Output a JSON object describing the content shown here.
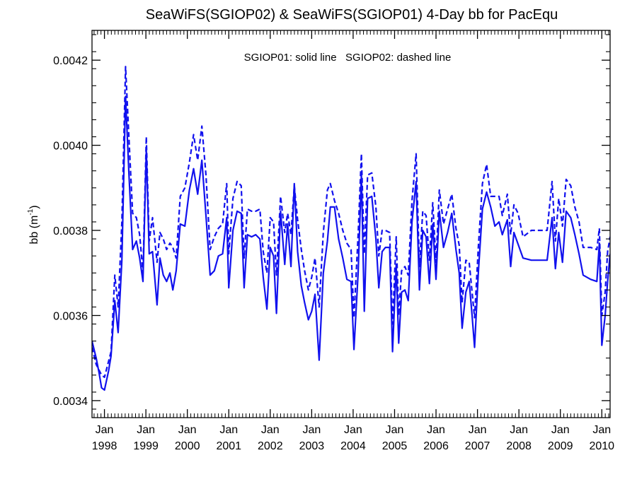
{
  "chart_data": {
    "type": "line",
    "title": "SeaWiFS(SGIOP02) & SeaWiFS(SGIOP01) 4-Day bb for PacEqu",
    "annotation": "SGIOP01: solid line   SGIOP02: dashed line",
    "ylabel": {
      "prefix": "bb (m",
      "superscript": "-1",
      "suffix": ")"
    },
    "xlabel": "",
    "ylim": [
      0.00336,
      0.00427
    ],
    "xlim": [
      1997.7,
      2010.2
    ],
    "y_ticks": [
      "0.0034",
      "0.0036",
      "0.0038",
      "0.0040",
      "0.0042"
    ],
    "x_ticks": [
      {
        "month": "Jan",
        "year": "1998"
      },
      {
        "month": "Jan",
        "year": "1999"
      },
      {
        "month": "Jan",
        "year": "2000"
      },
      {
        "month": "Jan",
        "year": "2001"
      },
      {
        "month": "Jan",
        "year": "2002"
      },
      {
        "month": "Jan",
        "year": "2003"
      },
      {
        "month": "Jan",
        "year": "2004"
      },
      {
        "month": "Jan",
        "year": "2005"
      },
      {
        "month": "Jan",
        "year": "2006"
      },
      {
        "month": "Jan",
        "year": "2007"
      },
      {
        "month": "Jan",
        "year": "2008"
      },
      {
        "month": "Jan",
        "year": "2009"
      },
      {
        "month": "Jan",
        "year": "2010"
      }
    ],
    "grid": false,
    "colors": {
      "series": "#1111ee",
      "axes": "#000000",
      "background": "#ffffff"
    },
    "series": [
      {
        "line_style": "solid",
        "points": [
          [
            1997.7,
            0.00354
          ],
          [
            1997.8,
            0.0035
          ],
          [
            1997.87,
            0.003465
          ],
          [
            1997.93,
            0.00343
          ],
          [
            1998.0,
            0.003425
          ],
          [
            1998.1,
            0.00347
          ],
          [
            1998.16,
            0.003505
          ],
          [
            1998.25,
            0.003635
          ],
          [
            1998.33,
            0.00356
          ],
          [
            1998.42,
            0.00373
          ],
          [
            1998.51,
            0.004115
          ],
          [
            1998.59,
            0.003935
          ],
          [
            1998.68,
            0.003755
          ],
          [
            1998.77,
            0.003775
          ],
          [
            1998.85,
            0.003735
          ],
          [
            1998.93,
            0.00368
          ],
          [
            1999.01,
            0.00399
          ],
          [
            1999.08,
            0.003745
          ],
          [
            1999.16,
            0.00375
          ],
          [
            1999.27,
            0.003625
          ],
          [
            1999.34,
            0.003735
          ],
          [
            1999.42,
            0.003695
          ],
          [
            1999.5,
            0.00368
          ],
          [
            1999.58,
            0.0037
          ],
          [
            1999.65,
            0.00366
          ],
          [
            1999.73,
            0.003705
          ],
          [
            1999.83,
            0.003815
          ],
          [
            1999.94,
            0.00381
          ],
          [
            2000.05,
            0.003895
          ],
          [
            2000.15,
            0.003945
          ],
          [
            2000.25,
            0.003885
          ],
          [
            2000.35,
            0.003965
          ],
          [
            2000.45,
            0.003835
          ],
          [
            2000.55,
            0.003695
          ],
          [
            2000.65,
            0.003705
          ],
          [
            2000.75,
            0.00374
          ],
          [
            2000.85,
            0.003745
          ],
          [
            2000.95,
            0.00383
          ],
          [
            2001.0,
            0.003665
          ],
          [
            2001.1,
            0.0038
          ],
          [
            2001.2,
            0.003845
          ],
          [
            2001.3,
            0.00384
          ],
          [
            2001.37,
            0.003665
          ],
          [
            2001.45,
            0.00379
          ],
          [
            2001.55,
            0.003785
          ],
          [
            2001.65,
            0.00379
          ],
          [
            2001.75,
            0.00378
          ],
          [
            2001.83,
            0.00369
          ],
          [
            2001.92,
            0.003615
          ],
          [
            2002.0,
            0.00376
          ],
          [
            2002.08,
            0.00374
          ],
          [
            2002.15,
            0.003605
          ],
          [
            2002.25,
            0.003845
          ],
          [
            2002.35,
            0.00372
          ],
          [
            2002.42,
            0.003815
          ],
          [
            2002.5,
            0.003715
          ],
          [
            2002.58,
            0.00391
          ],
          [
            2002.66,
            0.00375
          ],
          [
            2002.75,
            0.00367
          ],
          [
            2002.83,
            0.00363
          ],
          [
            2002.92,
            0.00359
          ],
          [
            2003.0,
            0.00361
          ],
          [
            2003.08,
            0.00365
          ],
          [
            2003.18,
            0.003495
          ],
          [
            2003.28,
            0.0037
          ],
          [
            2003.38,
            0.003775
          ],
          [
            2003.45,
            0.003855
          ],
          [
            2003.55,
            0.003855
          ],
          [
            2003.65,
            0.00378
          ],
          [
            2003.75,
            0.003735
          ],
          [
            2003.85,
            0.003685
          ],
          [
            2003.95,
            0.00368
          ],
          [
            2004.02,
            0.00352
          ],
          [
            2004.12,
            0.0037
          ],
          [
            2004.2,
            0.00393
          ],
          [
            2004.27,
            0.00361
          ],
          [
            2004.35,
            0.003875
          ],
          [
            2004.45,
            0.00388
          ],
          [
            2004.55,
            0.00378
          ],
          [
            2004.62,
            0.003665
          ],
          [
            2004.7,
            0.00375
          ],
          [
            2004.78,
            0.00376
          ],
          [
            2004.88,
            0.00376
          ],
          [
            2004.95,
            0.003515
          ],
          [
            2005.04,
            0.00372
          ],
          [
            2005.1,
            0.003535
          ],
          [
            2005.17,
            0.003655
          ],
          [
            2005.25,
            0.00366
          ],
          [
            2005.33,
            0.003635
          ],
          [
            2005.42,
            0.00382
          ],
          [
            2005.52,
            0.003915
          ],
          [
            2005.6,
            0.00366
          ],
          [
            2005.68,
            0.0038
          ],
          [
            2005.76,
            0.003785
          ],
          [
            2005.84,
            0.003675
          ],
          [
            2005.92,
            0.003815
          ],
          [
            2006.0,
            0.003685
          ],
          [
            2006.08,
            0.003845
          ],
          [
            2006.18,
            0.00376
          ],
          [
            2006.28,
            0.003795
          ],
          [
            2006.38,
            0.00384
          ],
          [
            2006.48,
            0.003755
          ],
          [
            2006.56,
            0.0037
          ],
          [
            2006.63,
            0.00357
          ],
          [
            2006.72,
            0.003655
          ],
          [
            2006.8,
            0.00368
          ],
          [
            2006.87,
            0.0036
          ],
          [
            2006.93,
            0.003525
          ],
          [
            2007.02,
            0.0037
          ],
          [
            2007.12,
            0.00385
          ],
          [
            2007.22,
            0.00389
          ],
          [
            2007.32,
            0.003855
          ],
          [
            2007.42,
            0.00381
          ],
          [
            2007.52,
            0.00382
          ],
          [
            2007.6,
            0.00379
          ],
          [
            2007.72,
            0.003825
          ],
          [
            2007.8,
            0.003715
          ],
          [
            2007.88,
            0.003795
          ],
          [
            2008.1,
            0.003735
          ],
          [
            2008.3,
            0.00373
          ],
          [
            2008.6,
            0.00373
          ],
          [
            2008.68,
            0.00373
          ],
          [
            2008.8,
            0.00383
          ],
          [
            2008.88,
            0.00371
          ],
          [
            2008.96,
            0.003795
          ],
          [
            2009.05,
            0.003725
          ],
          [
            2009.14,
            0.003845
          ],
          [
            2009.25,
            0.00383
          ],
          [
            2009.35,
            0.00379
          ],
          [
            2009.45,
            0.003745
          ],
          [
            2009.55,
            0.003695
          ],
          [
            2009.73,
            0.003685
          ],
          [
            2009.88,
            0.00368
          ],
          [
            2009.94,
            0.00377
          ],
          [
            2010.0,
            0.00353
          ],
          [
            2010.08,
            0.0036
          ],
          [
            2010.14,
            0.00368
          ],
          [
            2010.2,
            0.003745
          ]
        ]
      },
      {
        "line_style": "dashed",
        "points": [
          [
            1997.7,
            0.003525
          ],
          [
            1997.8,
            0.003485
          ],
          [
            1997.93,
            0.00346
          ],
          [
            1998.0,
            0.003455
          ],
          [
            1998.16,
            0.003515
          ],
          [
            1998.25,
            0.003695
          ],
          [
            1998.33,
            0.00362
          ],
          [
            1998.42,
            0.00382
          ],
          [
            1998.51,
            0.004185
          ],
          [
            1998.59,
            0.00402
          ],
          [
            1998.68,
            0.00384
          ],
          [
            1998.77,
            0.00383
          ],
          [
            1998.85,
            0.00379
          ],
          [
            1998.93,
            0.0037
          ],
          [
            1999.01,
            0.00402
          ],
          [
            1999.08,
            0.003775
          ],
          [
            1999.16,
            0.00383
          ],
          [
            1999.27,
            0.003725
          ],
          [
            1999.34,
            0.003795
          ],
          [
            1999.42,
            0.00378
          ],
          [
            1999.5,
            0.003755
          ],
          [
            1999.58,
            0.00377
          ],
          [
            1999.65,
            0.00376
          ],
          [
            1999.73,
            0.003735
          ],
          [
            1999.83,
            0.00388
          ],
          [
            1999.94,
            0.0039
          ],
          [
            2000.05,
            0.00396
          ],
          [
            2000.15,
            0.004025
          ],
          [
            2000.25,
            0.003965
          ],
          [
            2000.35,
            0.004045
          ],
          [
            2000.45,
            0.00393
          ],
          [
            2000.55,
            0.003755
          ],
          [
            2000.65,
            0.003785
          ],
          [
            2000.75,
            0.003805
          ],
          [
            2000.85,
            0.003815
          ],
          [
            2000.95,
            0.00391
          ],
          [
            2001.0,
            0.003745
          ],
          [
            2001.1,
            0.003875
          ],
          [
            2001.2,
            0.003915
          ],
          [
            2001.3,
            0.003905
          ],
          [
            2001.37,
            0.003735
          ],
          [
            2001.45,
            0.00385
          ],
          [
            2001.55,
            0.003845
          ],
          [
            2001.65,
            0.003845
          ],
          [
            2001.75,
            0.00385
          ],
          [
            2001.83,
            0.00375
          ],
          [
            2001.92,
            0.0037
          ],
          [
            2002.0,
            0.00383
          ],
          [
            2002.08,
            0.00382
          ],
          [
            2002.15,
            0.003695
          ],
          [
            2002.25,
            0.00388
          ],
          [
            2002.35,
            0.003795
          ],
          [
            2002.42,
            0.00384
          ],
          [
            2002.5,
            0.00379
          ],
          [
            2002.58,
            0.003905
          ],
          [
            2002.66,
            0.003825
          ],
          [
            2002.75,
            0.003755
          ],
          [
            2002.83,
            0.003705
          ],
          [
            2002.92,
            0.00366
          ],
          [
            2003.0,
            0.00369
          ],
          [
            2003.08,
            0.003735
          ],
          [
            2003.18,
            0.00362
          ],
          [
            2003.28,
            0.003795
          ],
          [
            2003.38,
            0.003895
          ],
          [
            2003.45,
            0.00391
          ],
          [
            2003.55,
            0.00387
          ],
          [
            2003.65,
            0.00384
          ],
          [
            2003.75,
            0.0038
          ],
          [
            2003.85,
            0.00377
          ],
          [
            2003.95,
            0.003755
          ],
          [
            2004.02,
            0.003595
          ],
          [
            2004.12,
            0.00379
          ],
          [
            2004.2,
            0.00398
          ],
          [
            2004.27,
            0.003745
          ],
          [
            2004.35,
            0.00393
          ],
          [
            2004.45,
            0.003935
          ],
          [
            2004.55,
            0.003855
          ],
          [
            2004.62,
            0.00374
          ],
          [
            2004.7,
            0.0038
          ],
          [
            2004.78,
            0.0038
          ],
          [
            2004.88,
            0.003795
          ],
          [
            2004.95,
            0.00358
          ],
          [
            2005.04,
            0.003785
          ],
          [
            2005.1,
            0.0036
          ],
          [
            2005.17,
            0.003705
          ],
          [
            2005.25,
            0.003715
          ],
          [
            2005.33,
            0.003695
          ],
          [
            2005.42,
            0.00387
          ],
          [
            2005.52,
            0.00398
          ],
          [
            2005.6,
            0.003715
          ],
          [
            2005.68,
            0.003845
          ],
          [
            2005.76,
            0.003835
          ],
          [
            2005.84,
            0.00373
          ],
          [
            2005.92,
            0.003865
          ],
          [
            2006.0,
            0.003725
          ],
          [
            2006.08,
            0.003895
          ],
          [
            2006.18,
            0.003815
          ],
          [
            2006.28,
            0.00385
          ],
          [
            2006.38,
            0.003885
          ],
          [
            2006.48,
            0.003805
          ],
          [
            2006.56,
            0.003765
          ],
          [
            2006.63,
            0.00363
          ],
          [
            2006.72,
            0.00373
          ],
          [
            2006.8,
            0.003725
          ],
          [
            2006.87,
            0.003655
          ],
          [
            2006.93,
            0.003595
          ],
          [
            2007.02,
            0.00376
          ],
          [
            2007.12,
            0.00391
          ],
          [
            2007.22,
            0.003955
          ],
          [
            2007.32,
            0.00388
          ],
          [
            2007.42,
            0.00388
          ],
          [
            2007.52,
            0.00388
          ],
          [
            2007.6,
            0.003835
          ],
          [
            2007.72,
            0.003885
          ],
          [
            2007.8,
            0.00379
          ],
          [
            2007.88,
            0.00386
          ],
          [
            2007.98,
            0.00384
          ],
          [
            2008.1,
            0.003785
          ],
          [
            2008.3,
            0.0038
          ],
          [
            2008.6,
            0.0038
          ],
          [
            2008.68,
            0.0038
          ],
          [
            2008.8,
            0.003915
          ],
          [
            2008.88,
            0.003775
          ],
          [
            2008.96,
            0.003875
          ],
          [
            2009.05,
            0.00381
          ],
          [
            2009.14,
            0.00392
          ],
          [
            2009.25,
            0.003905
          ],
          [
            2009.35,
            0.003855
          ],
          [
            2009.45,
            0.00382
          ],
          [
            2009.55,
            0.00376
          ],
          [
            2009.73,
            0.00376
          ],
          [
            2009.88,
            0.003755
          ],
          [
            2009.94,
            0.003805
          ],
          [
            2010.0,
            0.0036
          ],
          [
            2010.08,
            0.003655
          ],
          [
            2010.14,
            0.00375
          ],
          [
            2010.2,
            0.003785
          ]
        ]
      }
    ]
  }
}
